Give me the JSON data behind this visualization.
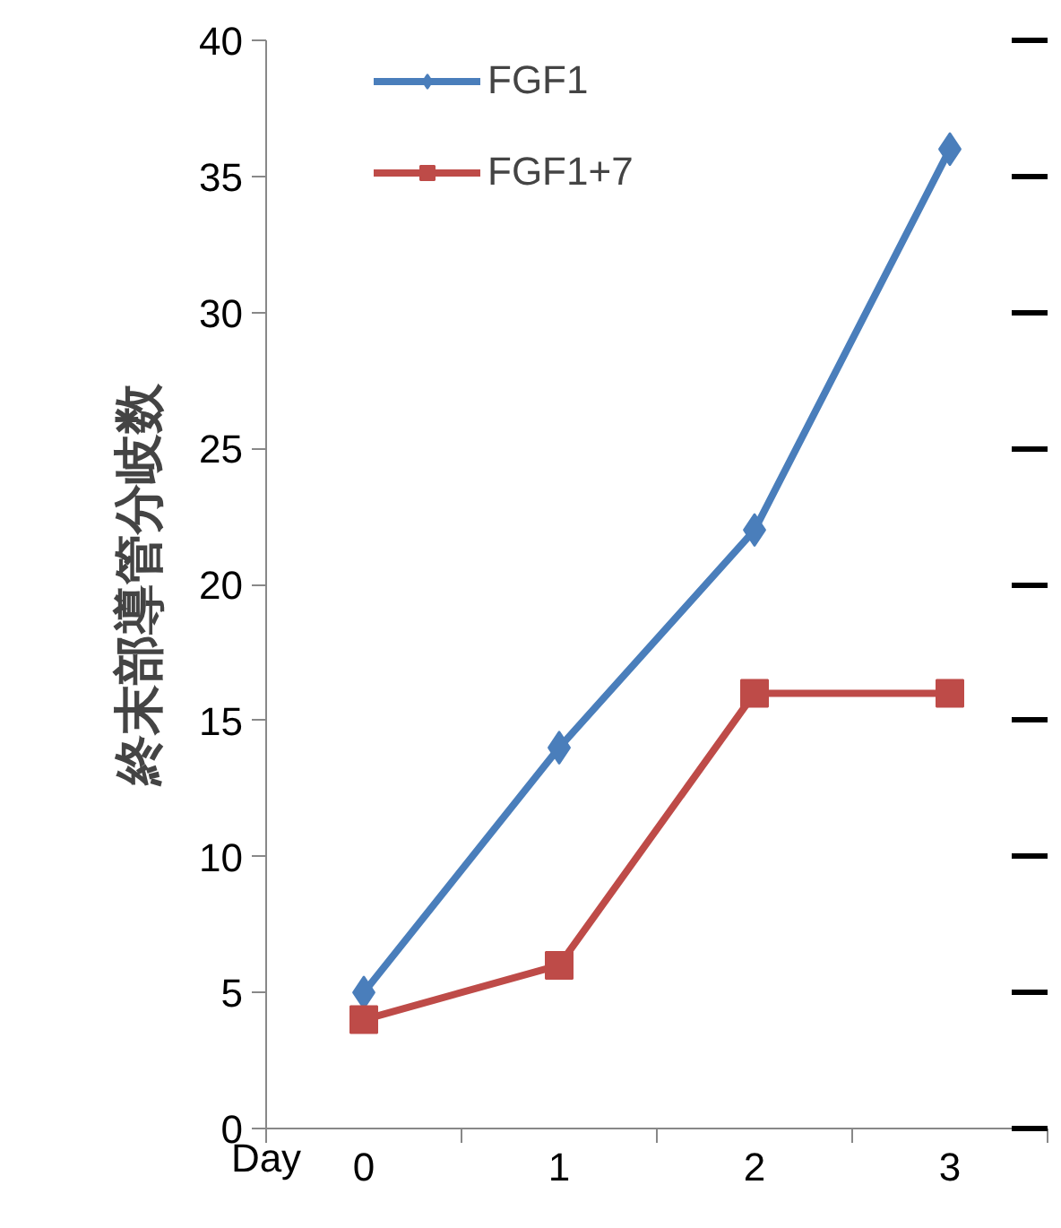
{
  "chart_data": {
    "type": "line",
    "xlabel": "Day",
    "ylabel": "終末部導管分岐数",
    "categories": [
      "0",
      "1",
      "2",
      "3"
    ],
    "series": [
      {
        "name": "FGF1",
        "color": "#4a7ebb",
        "marker": "diamond",
        "values": [
          5,
          14,
          22,
          36
        ]
      },
      {
        "name": "FGF1+7",
        "color": "#be4b48",
        "marker": "square",
        "values": [
          4,
          6,
          16,
          16
        ]
      }
    ],
    "ylim": [
      0,
      40
    ],
    "yticks": [
      0,
      5,
      10,
      15,
      20,
      25,
      30,
      35,
      40
    ],
    "grid": false,
    "legend": "top left",
    "line_style": "solid"
  }
}
